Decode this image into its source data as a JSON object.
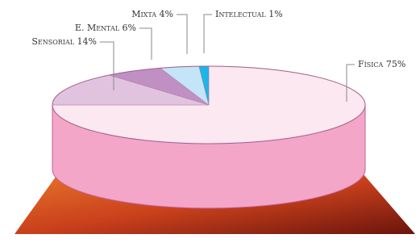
{
  "chart_data": {
    "type": "pie",
    "categories": [
      "Física",
      "Sensorial",
      "E. Mental",
      "Mixta",
      "Intelectual"
    ],
    "values": [
      75,
      14,
      6,
      4,
      1
    ],
    "value_labels": [
      "75%",
      "14%",
      "6%",
      "4%",
      "1%"
    ],
    "colors": [
      "#fce8f0",
      "#e1c3e0",
      "#c08fc4",
      "#c3e5f7",
      "#1ab6e8"
    ],
    "side_color": "#f4a6c8"
  }
}
